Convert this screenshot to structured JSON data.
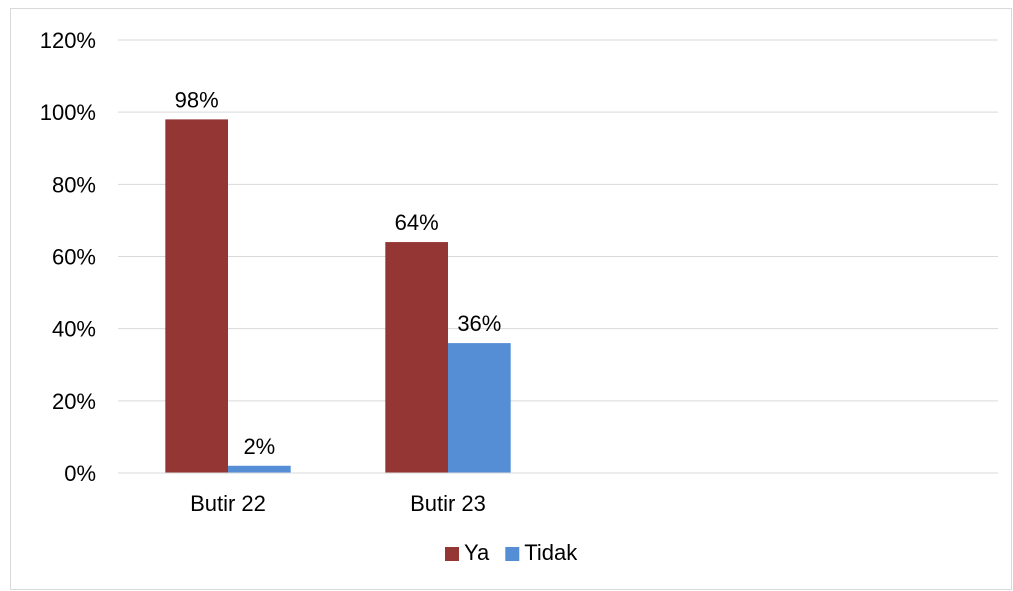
{
  "chart_data": {
    "type": "bar",
    "categories": [
      "Butir 22",
      "Butir 23"
    ],
    "series": [
      {
        "name": "Ya",
        "color": "#943634",
        "values": [
          98,
          64
        ],
        "labels": [
          "98%",
          "64%"
        ]
      },
      {
        "name": "Tidak",
        "color": "#558ED5",
        "values": [
          2,
          36
        ],
        "labels": [
          "2%",
          "36%"
        ]
      }
    ],
    "slots": 4,
    "ylim": [
      0,
      120
    ],
    "yticks": [
      0,
      20,
      40,
      60,
      80,
      100,
      120
    ],
    "ytick_labels": [
      "0%",
      "20%",
      "40%",
      "60%",
      "80%",
      "100%",
      "120%"
    ],
    "grid": true,
    "gridline_color": "#d9d9d9",
    "legend_position": "bottom",
    "title": "",
    "xlabel": "",
    "ylabel": ""
  }
}
